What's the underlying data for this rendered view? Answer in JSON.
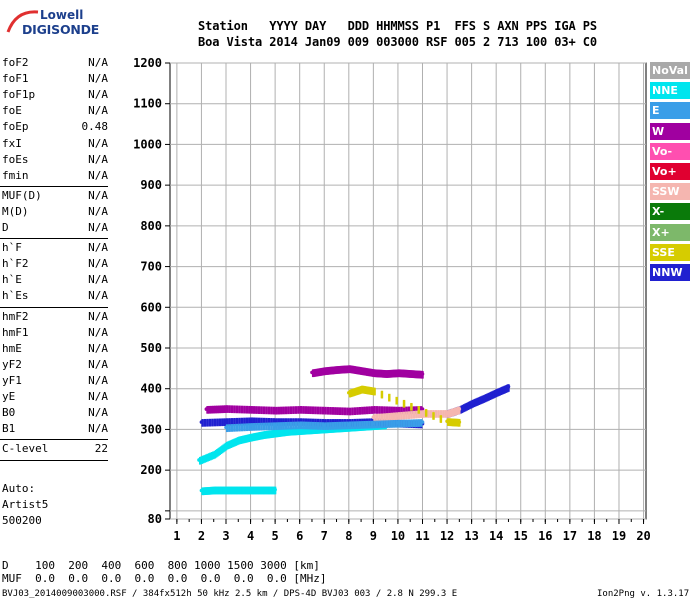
{
  "logo": {
    "line1": "Lowell",
    "line2": "DIGISONDE"
  },
  "header": {
    "labels_row": "Station   YYYY DAY   DDD HHMMSS P1  FFS S AXN PPS IGA PS",
    "values_row": "Boa Vista 2014 Jan09 009 003000 RSF 005 2 713 100 03+ C0"
  },
  "params": [
    {
      "name": "foF2",
      "value": "N/A"
    },
    {
      "name": "foF1",
      "value": "N/A"
    },
    {
      "name": "foF1p",
      "value": "N/A"
    },
    {
      "name": "foE",
      "value": "N/A"
    },
    {
      "name": "foEp",
      "value": "0.48"
    },
    {
      "name": "fxI",
      "value": "N/A"
    },
    {
      "name": "foEs",
      "value": "N/A"
    },
    {
      "name": "fmin",
      "value": "N/A"
    },
    {
      "name": "MUF(D)",
      "value": "N/A"
    },
    {
      "name": "M(D)",
      "value": "N/A"
    },
    {
      "name": "D",
      "value": "N/A"
    },
    {
      "name": "h`F",
      "value": "N/A"
    },
    {
      "name": "h`F2",
      "value": "N/A"
    },
    {
      "name": "h`E",
      "value": "N/A"
    },
    {
      "name": "h`Es",
      "value": "N/A"
    },
    {
      "name": "hmF2",
      "value": "N/A"
    },
    {
      "name": "hmF1",
      "value": "N/A"
    },
    {
      "name": "hmE",
      "value": "N/A"
    },
    {
      "name": "yF2",
      "value": "N/A"
    },
    {
      "name": "yF1",
      "value": "N/A"
    },
    {
      "name": "yE",
      "value": "N/A"
    },
    {
      "name": "B0",
      "value": "N/A"
    },
    {
      "name": "B1",
      "value": "N/A"
    },
    {
      "name": "C-level",
      "value": "22"
    }
  ],
  "autoscale": {
    "line1": "Auto:",
    "line2": "Artist5",
    "line3": "500200"
  },
  "legend": [
    {
      "label": "NoVal",
      "color": "#a9a9a9"
    },
    {
      "label": "NNE",
      "color": "#00e5ee"
    },
    {
      "label": "E",
      "color": "#3a9ee8"
    },
    {
      "label": "W",
      "color": "#a000a0"
    },
    {
      "label": "Vo-",
      "color": "#ff4fb0"
    },
    {
      "label": "Vo+",
      "color": "#e00030"
    },
    {
      "label": "SSW",
      "color": "#f5b6b0"
    },
    {
      "label": "X-",
      "color": "#0a7a0a"
    },
    {
      "label": "X+",
      "color": "#7db86a"
    },
    {
      "label": "SSE",
      "color": "#d6cc00"
    },
    {
      "label": "NNW",
      "color": "#2020d0"
    }
  ],
  "bottom": {
    "d_row": "D    100  200  400  600  800 1000 1500 3000 [km]",
    "muf_row": "MUF  0.0  0.0  0.0  0.0  0.0  0.0  0.0  0.0 [MHz]",
    "footer_left": "BVJ03_2014009003000.RSF / 384fx512h 50 kHz 2.5 km / DPS-4D BVJ03 003 / 2.8 N 299.3 E",
    "footer_right": "Ion2Png v. 1.3.17"
  },
  "chart_data": {
    "type": "scatter",
    "xlim": [
      1,
      20
    ],
    "ylim": [
      80,
      1200
    ],
    "x_ticks": [
      1,
      2,
      3,
      4,
      5,
      6,
      7,
      8,
      9,
      10,
      11,
      12,
      13,
      14,
      15,
      16,
      17,
      18,
      19,
      20
    ],
    "y_ticks": [
      80,
      100,
      200,
      300,
      400,
      500,
      600,
      700,
      800,
      900,
      1000,
      1100,
      1200
    ],
    "y_tick_labels": [
      "80",
      "",
      "200",
      "300",
      "400",
      "500",
      "600",
      "700",
      "800",
      "900",
      "1000",
      "1100",
      "1200"
    ],
    "grid": true,
    "legend_position": "right",
    "traces": [
      {
        "name": "NNE",
        "color": "#00e5ee",
        "x": [
          1.9,
          2.5,
          3.0,
          3.5,
          4.0,
          4.5,
          5.0,
          5.5,
          6.0,
          6.5,
          7.0,
          7.5,
          8.0,
          8.5,
          9.0,
          9.5
        ],
        "y": [
          225,
          240,
          262,
          275,
          282,
          288,
          292,
          296,
          298,
          300,
          302,
          304,
          306,
          308,
          310,
          312
        ]
      },
      {
        "name": "NNE-low",
        "color": "#00e5ee",
        "x": [
          2.0,
          2.5,
          3.0,
          3.5,
          4.0,
          4.5,
          5.0
        ],
        "y": [
          150,
          152,
          152,
          152,
          152,
          152,
          152
        ]
      },
      {
        "name": "NNW",
        "color": "#2020d0",
        "x": [
          2.0,
          3.0,
          4.0,
          5.0,
          6.0,
          7.0,
          8.0,
          9.0,
          10.0,
          11.0
        ],
        "y": [
          318,
          320,
          322,
          320,
          320,
          318,
          318,
          320,
          316,
          314
        ]
      },
      {
        "name": "W",
        "color": "#a000a0",
        "x": [
          2.2,
          3.0,
          4.0,
          5.0,
          6.0,
          7.0,
          8.0,
          9.0,
          10.0,
          11.0
        ],
        "y": [
          350,
          352,
          350,
          348,
          350,
          348,
          346,
          350,
          348,
          350
        ]
      },
      {
        "name": "W-mid",
        "color": "#a000a0",
        "x": [
          6.5,
          7.0,
          7.5,
          8.0,
          8.5,
          9.0,
          9.5,
          10.0,
          10.5,
          11.0
        ],
        "y": [
          440,
          445,
          448,
          450,
          445,
          440,
          438,
          440,
          438,
          436
        ]
      },
      {
        "name": "NNW-rise",
        "color": "#2020d0",
        "x": [
          12.0,
          12.5,
          13.0,
          13.5,
          14.0,
          14.5
        ],
        "y": [
          340,
          350,
          365,
          378,
          392,
          405
        ]
      },
      {
        "name": "SSW",
        "color": "#f5b6b0",
        "x": [
          9.0,
          10.0,
          11.0,
          12.0,
          12.5
        ],
        "y": [
          330,
          335,
          340,
          340,
          350
        ]
      },
      {
        "name": "SSE",
        "color": "#d6cc00",
        "x": [
          8.0,
          8.5,
          9.0,
          12.0,
          12.5
        ],
        "y": [
          390,
          400,
          395,
          320,
          318
        ]
      },
      {
        "name": "E",
        "color": "#3a9ee8",
        "x": [
          3.0,
          4.0,
          5.0,
          6.0,
          7.0,
          8.0,
          9.0,
          10.0,
          11.0
        ],
        "y": [
          305,
          308,
          310,
          312,
          310,
          312,
          314,
          316,
          318
        ]
      }
    ]
  }
}
